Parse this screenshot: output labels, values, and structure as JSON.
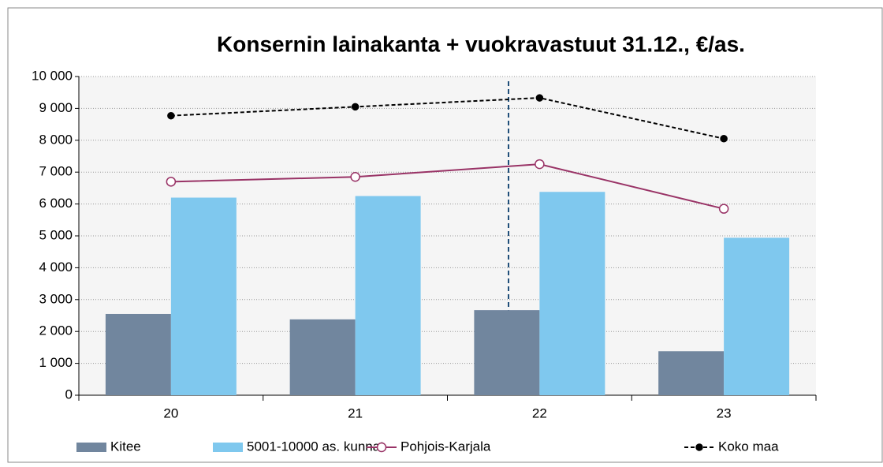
{
  "chart_data": {
    "type": "bar",
    "title": "Konsernin lainakanta + vuokravastuut 31.12., €/as.",
    "categories": [
      "20",
      "21",
      "22",
      "23"
    ],
    "series": [
      {
        "name": "Kitee",
        "type": "bar",
        "color": "#71869e",
        "values": [
          2550,
          2380,
          2670,
          1380
        ]
      },
      {
        "name": "5001-10000 as. kunnat",
        "type": "bar",
        "color": "#7fc8ee",
        "values": [
          6200,
          6250,
          6380,
          4940
        ]
      },
      {
        "name": "Pohjois-Karjala",
        "type": "line",
        "color": "#993366",
        "values": [
          6700,
          6850,
          7250,
          5850
        ]
      },
      {
        "name": "Koko maa",
        "type": "line",
        "color": "#000000",
        "values": [
          8770,
          9050,
          9330,
          8050
        ]
      }
    ],
    "ylim": [
      0,
      10000
    ],
    "yticks": [
      0,
      {
        "value": 1000,
        "label": "1 000"
      },
      {
        "value": 2000,
        "label": "2 000"
      },
      {
        "value": 3000,
        "label": "3 000"
      },
      {
        "value": 4000,
        "label": "4 000"
      },
      {
        "value": 5000,
        "label": "5 000"
      },
      {
        "value": 6000,
        "label": "6 000"
      },
      {
        "value": 7000,
        "label": "7 000"
      },
      {
        "value": 8000,
        "label": "8 000"
      },
      {
        "value": 9000,
        "label": "9 000"
      },
      {
        "value": 10000,
        "label": "10 000"
      }
    ],
    "grid": true,
    "legend": "bottom"
  }
}
